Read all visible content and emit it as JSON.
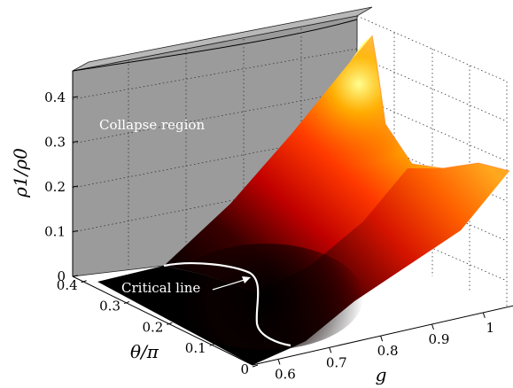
{
  "chart_data": {
    "type": "surface",
    "axes": {
      "z": {
        "label": "ρ1/ρ0",
        "ticks": [
          0,
          0.1,
          0.2,
          0.3,
          0.4
        ],
        "tick_labels": [
          "0",
          "0.1",
          "0.2",
          "0.3",
          "0.4"
        ],
        "range": [
          0,
          0.45
        ]
      },
      "theta": {
        "label": "θ/π",
        "ticks": [
          0,
          0.1,
          0.2,
          0.3,
          0.4
        ],
        "tick_labels": [
          "0",
          "0.1",
          "0.2",
          "0.3",
          "0.4"
        ],
        "range": [
          0,
          0.4
        ]
      },
      "g": {
        "label": "g",
        "ticks": [
          0.6,
          0.7,
          0.8,
          0.9,
          1
        ],
        "tick_labels": [
          "0.6",
          "0.7",
          "0.8",
          "0.9",
          "1"
        ],
        "range": [
          0.55,
          1.05
        ]
      }
    },
    "annotations": [
      {
        "text": "Collapse region",
        "color": "#ffffff"
      },
      {
        "text": "Critical line",
        "color": "#ffffff"
      }
    ],
    "colormap": "hot",
    "collapse_region_color": "#9b9b9b"
  }
}
